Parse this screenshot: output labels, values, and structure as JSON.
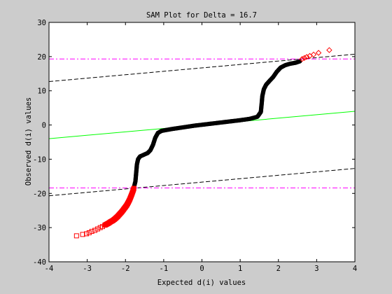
{
  "chart_data": {
    "type": "scatter",
    "title": "SAM Plot for Delta = 16.7",
    "xlabel": "Expected d(i) values",
    "ylabel": "Observed d(i) values",
    "xlim": [
      -4,
      4
    ],
    "ylim": [
      -40,
      30
    ],
    "xticks": [
      "-4",
      "-3",
      "-2",
      "-1",
      "0",
      "1",
      "2",
      "3",
      "4"
    ],
    "yticks": [
      "-40",
      "-30",
      "-20",
      "-10",
      "0",
      "10",
      "20",
      "30"
    ],
    "grid": false,
    "colors": {
      "figure_bg": "#cccccc",
      "axes_bg": "#ffffff",
      "non_significant": "#000000",
      "significant_down": "#ff0000",
      "significant_up": "#ff0000",
      "reference_line": "#00ff00",
      "delta_bands": "#000000",
      "cutoff_lines": "#ff00ff"
    },
    "reference_line": {
      "from": [
        -4,
        -4
      ],
      "to": [
        4,
        4
      ]
    },
    "delta_bands": [
      {
        "from": [
          -4,
          12.7
        ],
        "to": [
          4,
          20.7
        ]
      },
      {
        "from": [
          -4,
          -20.7
        ],
        "to": [
          4,
          -12.7
        ]
      }
    ],
    "cutoff_lines": [
      19.3,
      -18.4
    ],
    "upper_cutoff_lower_markers": {
      "marker": "diamond",
      "points": [
        [
          2.62,
          19.3
        ],
        [
          2.68,
          19.6
        ],
        [
          2.74,
          19.9
        ],
        [
          2.82,
          20.2
        ],
        [
          2.92,
          20.6
        ],
        [
          3.05,
          21.1
        ],
        [
          3.33,
          21.9
        ]
      ]
    },
    "lower_significant_markers": {
      "marker": "square",
      "points": [
        [
          -3.28,
          -32.4
        ],
        [
          -3.12,
          -32.0
        ],
        [
          -3.02,
          -31.8
        ],
        [
          -2.95,
          -31.5
        ],
        [
          -2.88,
          -31.1
        ],
        [
          -2.8,
          -30.8
        ],
        [
          -2.73,
          -30.4
        ],
        [
          -2.66,
          -30.0
        ],
        [
          -2.6,
          -29.7
        ],
        [
          -2.54,
          -29.3
        ],
        [
          -2.49,
          -29.0
        ],
        [
          -2.44,
          -28.7
        ],
        [
          -2.39,
          -28.3
        ],
        [
          -2.34,
          -28.0
        ],
        [
          -2.29,
          -27.6
        ],
        [
          -2.25,
          -27.2
        ],
        [
          -2.21,
          -26.8
        ],
        [
          -2.17,
          -26.3
        ],
        [
          -2.13,
          -25.8
        ],
        [
          -2.09,
          -25.3
        ],
        [
          -2.05,
          -24.7
        ],
        [
          -2.01,
          -24.1
        ],
        [
          -1.97,
          -23.5
        ],
        [
          -1.93,
          -22.7
        ],
        [
          -1.89,
          -21.8
        ],
        [
          -1.85,
          -20.7
        ],
        [
          -1.81,
          -19.5
        ],
        [
          -1.78,
          -18.5
        ]
      ]
    },
    "non_significant_curve": [
      [
        -1.78,
        -18.3
      ],
      [
        -1.74,
        -16.5
      ],
      [
        -1.72,
        -14.0
      ],
      [
        -1.7,
        -11.5
      ],
      [
        -1.67,
        -10.0
      ],
      [
        -1.62,
        -9.2
      ],
      [
        -1.52,
        -8.7
      ],
      [
        -1.42,
        -8.2
      ],
      [
        -1.35,
        -7.4
      ],
      [
        -1.28,
        -5.8
      ],
      [
        -1.22,
        -3.7
      ],
      [
        -1.15,
        -2.3
      ],
      [
        -1.05,
        -1.7
      ],
      [
        -0.8,
        -1.2
      ],
      [
        -0.5,
        -0.7
      ],
      [
        -0.2,
        -0.2
      ],
      [
        0.1,
        0.2
      ],
      [
        0.4,
        0.6
      ],
      [
        0.7,
        1.0
      ],
      [
        1.0,
        1.4
      ],
      [
        1.25,
        1.8
      ],
      [
        1.45,
        2.4
      ],
      [
        1.54,
        3.8
      ],
      [
        1.56,
        6.0
      ],
      [
        1.58,
        8.5
      ],
      [
        1.62,
        10.5
      ],
      [
        1.68,
        11.8
      ],
      [
        1.76,
        12.8
      ],
      [
        1.86,
        14.0
      ],
      [
        1.96,
        15.6
      ],
      [
        2.06,
        16.8
      ],
      [
        2.18,
        17.5
      ],
      [
        2.3,
        17.9
      ],
      [
        2.45,
        18.2
      ],
      [
        2.58,
        18.7
      ]
    ]
  }
}
